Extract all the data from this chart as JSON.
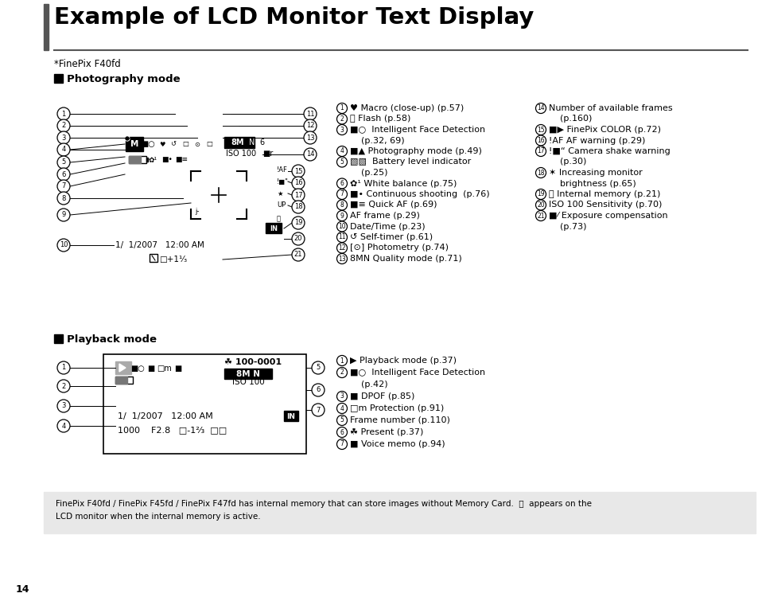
{
  "title": "Example of LCD Monitor Text Display",
  "subtitle": "*FinePix F40fd",
  "bg_color": "#ffffff",
  "footer_bg": "#e8e8e8",
  "footer_text": "FinePix F40fd / FinePix F45fd / FinePix F47fd has internal memory that can store images without Memory Card.  Ⓘ  appears on the\nLCD monitor when the internal memory is active.",
  "page_number": "14",
  "photo_ann_col1": [
    [
      1,
      "♥ Macro (close-up) (p.57)"
    ],
    [
      2,
      "Ⓢ Flash (p.58)"
    ],
    [
      3,
      "■○  Intelligent Face Detection"
    ],
    [
      null,
      "    (p.32, 69)"
    ],
    [
      4,
      "■▲ Photography mode (p.49)"
    ],
    [
      5,
      "▧▧  Battery level indicator"
    ],
    [
      null,
      "    (p.25)"
    ],
    [
      6,
      "✿¹ White balance (p.75)"
    ],
    [
      7,
      "■• Continuous shooting  (p.76)"
    ],
    [
      8,
      "■≡ Quick AF (p.69)"
    ],
    [
      9,
      "AF frame (p.29)"
    ],
    [
      10,
      "Date/Time (p.23)"
    ],
    [
      11,
      "↺ Self-timer (p.61)"
    ],
    [
      12,
      "[⊙] Photometry (p.74)"
    ],
    [
      13,
      "8MN Quality mode (p.71)"
    ]
  ],
  "photo_ann_col2": [
    [
      14,
      "Number of available frames"
    ],
    [
      null,
      "    (p.160)"
    ],
    [
      15,
      "■▶ FinePix COLOR (p.72)"
    ],
    [
      16,
      "!AF AF warning (p.29)"
    ],
    [
      17,
      "!■“ Camera shake warning"
    ],
    [
      null,
      "    (p.30)"
    ],
    [
      18,
      "✶ Increasing monitor"
    ],
    [
      null,
      "    brightness (p.65)"
    ],
    [
      19,
      "Ⓘ Internal memory (p.21)"
    ],
    [
      20,
      "ISO 100 Sensitivity (p.70)"
    ],
    [
      21,
      "■⁄ Exposure compensation"
    ],
    [
      null,
      "    (p.73)"
    ]
  ],
  "pb_ann_col": [
    [
      1,
      "▶ Playback mode (p.37)"
    ],
    [
      2,
      "■○  Intelligent Face Detection"
    ],
    [
      null,
      "    (p.42)"
    ],
    [
      3,
      "■ DPOF (p.85)"
    ],
    [
      4,
      "□m Protection (p.91)"
    ],
    [
      5,
      "Frame number (p.110)"
    ],
    [
      6,
      "☘ Present (p.37)"
    ],
    [
      7,
      "■ Voice memo (p.94)"
    ]
  ]
}
